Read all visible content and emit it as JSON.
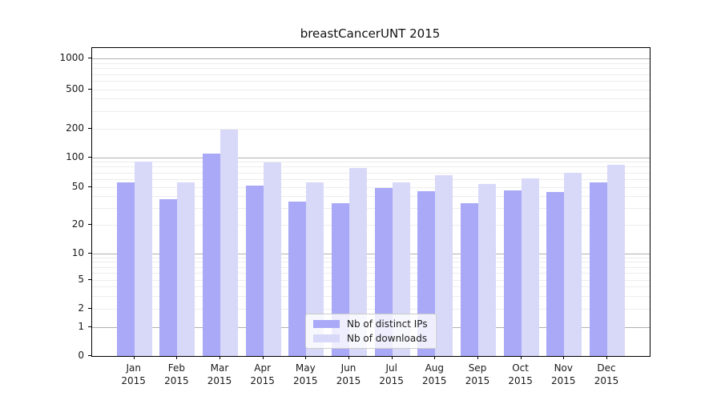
{
  "figure": {
    "background": "#ffffff"
  },
  "chart_data": {
    "type": "bar",
    "title": "breastCancerUNT 2015",
    "categories": [
      "Jan",
      "Feb",
      "Mar",
      "Apr",
      "May",
      "Jun",
      "Jul",
      "Aug",
      "Sep",
      "Oct",
      "Nov",
      "Dec"
    ],
    "category_year": "2015",
    "series": [
      {
        "name": "Nb of distinct IPs",
        "color": "#a9a9f7",
        "values": [
          55,
          37,
          110,
          51,
          35,
          34,
          49,
          45,
          34,
          46,
          44,
          55
        ]
      },
      {
        "name": "Nb of downloads",
        "color": "#d8d8f9",
        "values": [
          90,
          56,
          195,
          88,
          56,
          78,
          55,
          66,
          53,
          61,
          70,
          84
        ]
      }
    ],
    "xlabel": "",
    "ylabel": "",
    "y_scale": "symlog",
    "y_ticks": [
      0,
      1,
      2,
      5,
      10,
      20,
      50,
      100,
      200,
      500,
      1000
    ],
    "ylim": [
      0,
      1400
    ],
    "grid": "horizontal",
    "major_grid_values": [
      1,
      10,
      100,
      1000
    ],
    "legend_position": "inside-bottom-center",
    "legend_items": [
      {
        "label": "Nb of distinct IPs",
        "color": "#a9a9f7"
      },
      {
        "label": "Nb of downloads",
        "color": "#d8d8f9"
      }
    ]
  },
  "colors": {
    "major_grid": "#b0b0b0",
    "minor_grid": "#ececec",
    "axis": "#000000",
    "text": "#1a1a1a"
  }
}
